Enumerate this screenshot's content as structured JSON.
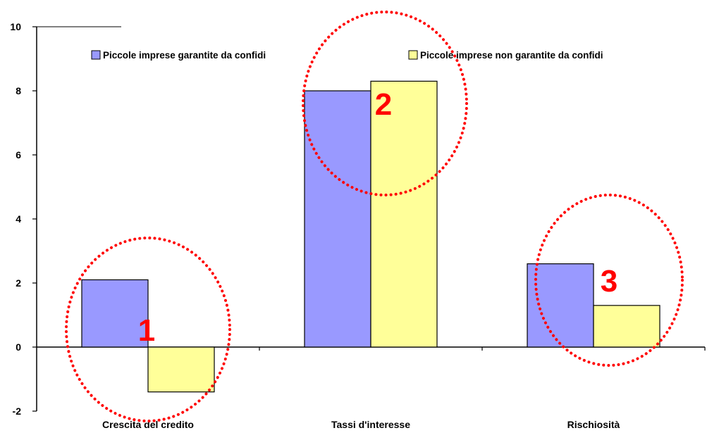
{
  "chart_data": {
    "type": "bar",
    "categories": [
      "Crescita del credito",
      "Tassi d'interesse",
      "Rischiosità"
    ],
    "series": [
      {
        "name": "Piccole imprese garantite da confidi",
        "values": [
          2.1,
          8.0,
          2.6
        ],
        "color": "#9999ff"
      },
      {
        "name": "Piccole imprese non garantite da confidi",
        "values": [
          -1.4,
          8.3,
          1.3
        ],
        "color": "#ffff99"
      }
    ],
    "ylim": [
      -2,
      10
    ],
    "yticks": [
      "-2",
      "0",
      "2",
      "4",
      "6",
      "8",
      "10"
    ],
    "title": "",
    "xlabel": "",
    "ylabel": "",
    "grid": false,
    "legend": "top",
    "annotations": [
      {
        "label": "1",
        "category": 0
      },
      {
        "label": "2",
        "category": 1
      },
      {
        "label": "3",
        "category": 2
      }
    ],
    "annotation_color": "#ff0000"
  }
}
